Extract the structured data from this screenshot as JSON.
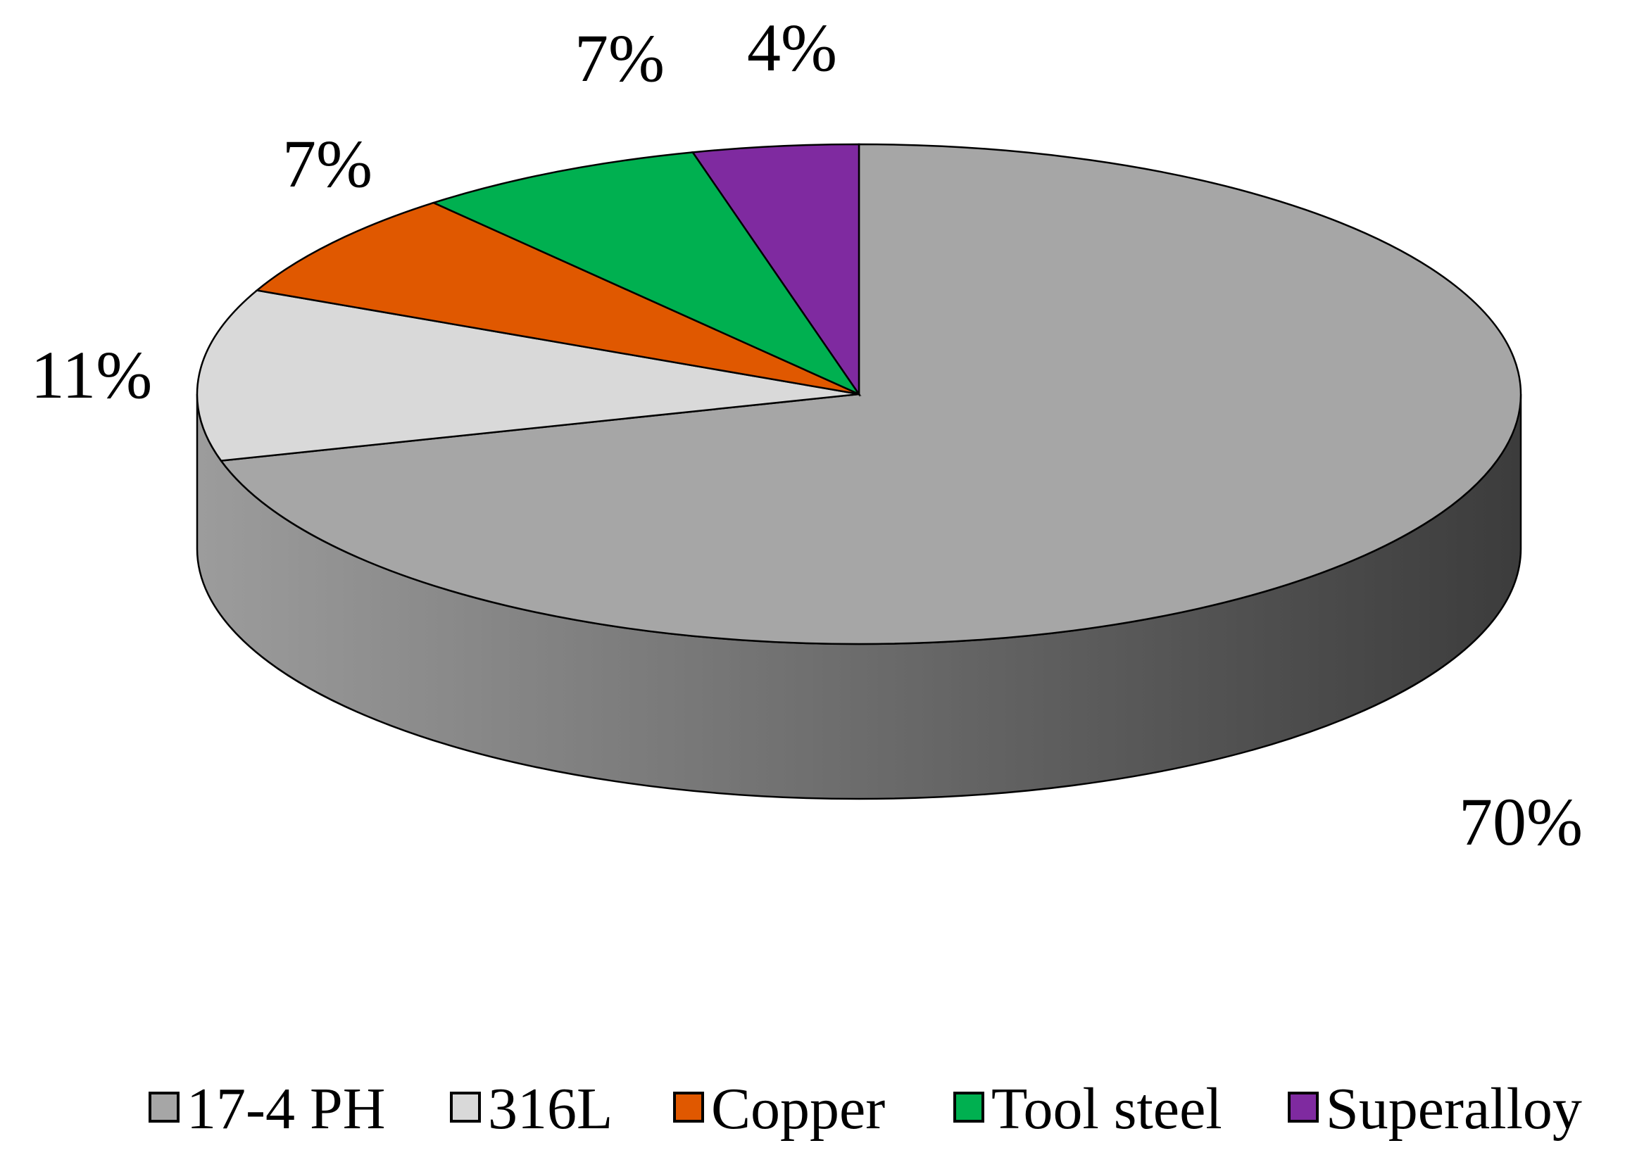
{
  "chart_data": {
    "type": "pie",
    "style": "3d",
    "title": "",
    "legend_position": "bottom",
    "categories": [
      "17-4 PH",
      "316L",
      "Copper",
      "Tool steel",
      "Superalloy"
    ],
    "values": [
      70,
      11,
      7,
      7,
      4
    ],
    "labels": [
      "70%",
      "11%",
      "7%",
      "7%",
      "4%"
    ],
    "colors": [
      "#a6a6a6",
      "#d9d9d9",
      "#e05800",
      "#00b050",
      "#7f2aa0"
    ],
    "side_colors": {
      "light": "#9c9c9c",
      "dark": "#3c3c3c"
    }
  }
}
